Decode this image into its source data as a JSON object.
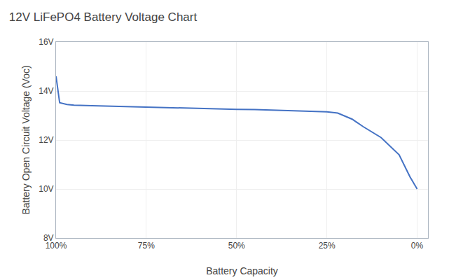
{
  "chart_data": {
    "type": "line",
    "title": "12V LiFePO4 Battery Voltage Chart",
    "xlabel": "Battery Capacity",
    "ylabel": "Battery Open Circuit Voltage (Voc)",
    "color": "#4472C4",
    "x": [
      100,
      99,
      97,
      95,
      90,
      85,
      80,
      75,
      70,
      65,
      60,
      55,
      50,
      45,
      40,
      35,
      30,
      25,
      22,
      18,
      15,
      10,
      5,
      2,
      0
    ],
    "values": [
      14.6,
      13.52,
      13.45,
      13.42,
      13.4,
      13.38,
      13.35,
      13.33,
      13.31,
      13.29,
      13.27,
      13.26,
      13.25,
      13.24,
      13.22,
      13.2,
      13.18,
      13.15,
      13.1,
      12.85,
      12.55,
      12.1,
      11.4,
      10.5,
      10.0
    ],
    "xlim": [
      100,
      -3
    ],
    "ylim": [
      8,
      16
    ],
    "xticks": [
      {
        "value": 0,
        "label": "0%"
      },
      {
        "value": 25,
        "label": "25%"
      },
      {
        "value": 50,
        "label": "50%"
      },
      {
        "value": 75,
        "label": "75%"
      },
      {
        "value": 100,
        "label": "100%"
      }
    ],
    "yticks": [
      {
        "value": 8,
        "label": "8V"
      },
      {
        "value": 10,
        "label": "10V"
      },
      {
        "value": 12,
        "label": "12V"
      },
      {
        "value": 14,
        "label": "14V"
      },
      {
        "value": 16,
        "label": "16V"
      }
    ],
    "grid": true
  }
}
